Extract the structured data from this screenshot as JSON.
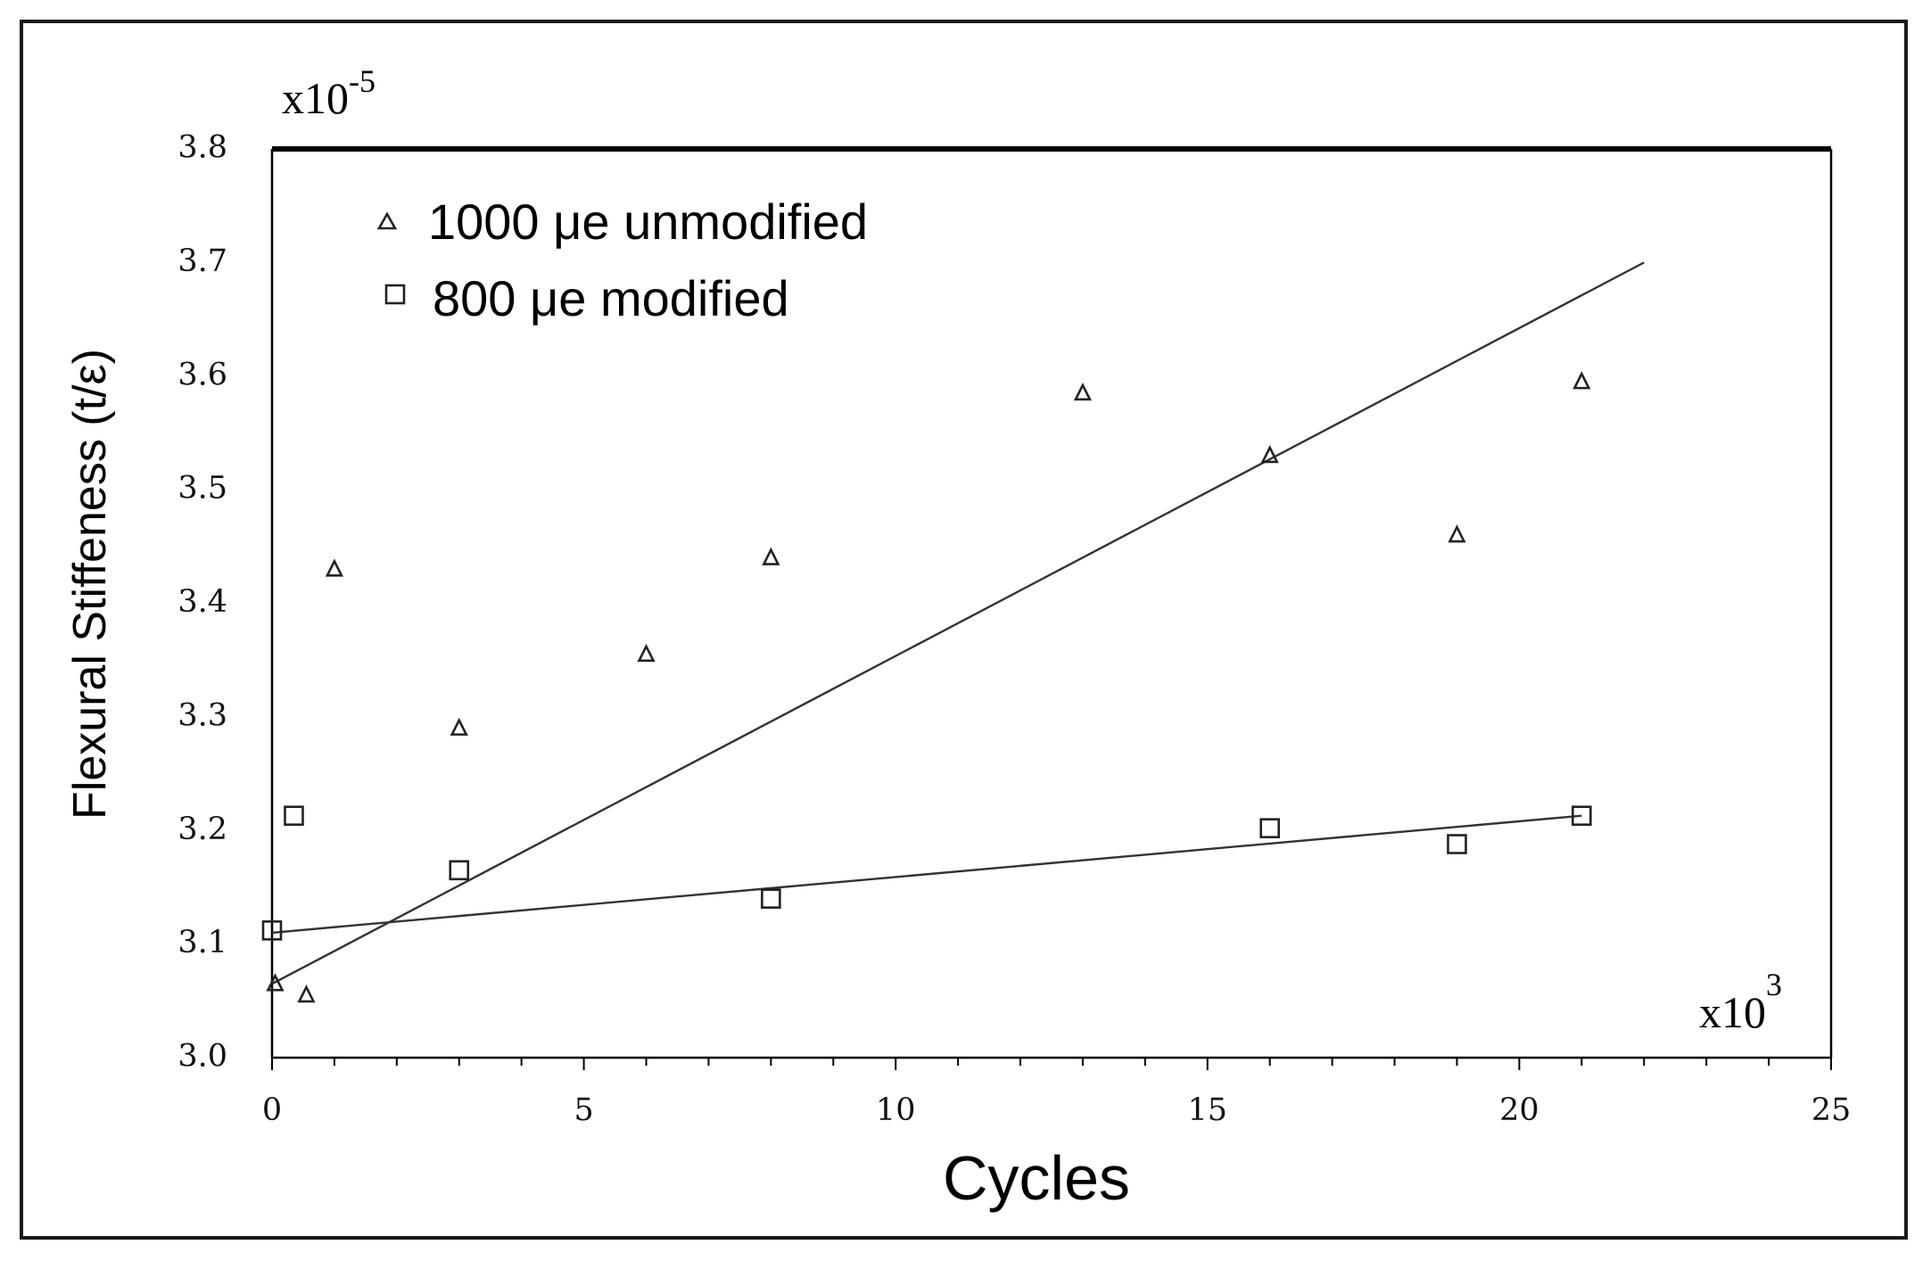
{
  "chart_data": {
    "type": "scatter",
    "title": "",
    "xlabel": "Cycles",
    "ylabel": "Flexural Stiffeness  (t/ε)",
    "x_multiplier": "x10",
    "x_multiplier_exp": "3",
    "y_multiplier": "x10",
    "y_multiplier_exp": "-5",
    "xlim": [
      0,
      25
    ],
    "ylim": [
      3.0,
      3.8
    ],
    "xticks": [
      0,
      5,
      10,
      15,
      20,
      25
    ],
    "xtick_labels": [
      "0",
      "5",
      "10",
      "15",
      "20",
      "25"
    ],
    "yticks": [
      3.0,
      3.1,
      3.2,
      3.3,
      3.4,
      3.5,
      3.6,
      3.7,
      3.8
    ],
    "ytick_labels": [
      "3.0",
      "3.1",
      "3.2",
      "3.3",
      "3.4",
      "3.5",
      "3.6",
      "3.7",
      "3.8"
    ],
    "grid": false,
    "legend_position": "top-left",
    "series": [
      {
        "name": "1000 μe unmodified",
        "marker": "triangle",
        "x": [
          0.05,
          0.55,
          1.0,
          3.0,
          6.0,
          8.0,
          13.0,
          16.0,
          19.0,
          21.0
        ],
        "y": [
          3.065,
          3.055,
          3.43,
          3.29,
          3.355,
          3.44,
          3.585,
          3.53,
          3.46,
          3.595
        ],
        "trendline": {
          "x": [
            0.0,
            22.0
          ],
          "y": [
            3.065,
            3.7
          ]
        }
      },
      {
        "name": "800 μe modified",
        "marker": "square",
        "x": [
          0.0,
          0.35,
          3.0,
          8.0,
          16.0,
          19.0,
          21.0
        ],
        "y": [
          3.112,
          3.213,
          3.165,
          3.14,
          3.202,
          3.188,
          3.213
        ],
        "trendline": {
          "x": [
            0.0,
            21.0
          ],
          "y": [
            3.11,
            3.213
          ]
        }
      }
    ]
  }
}
